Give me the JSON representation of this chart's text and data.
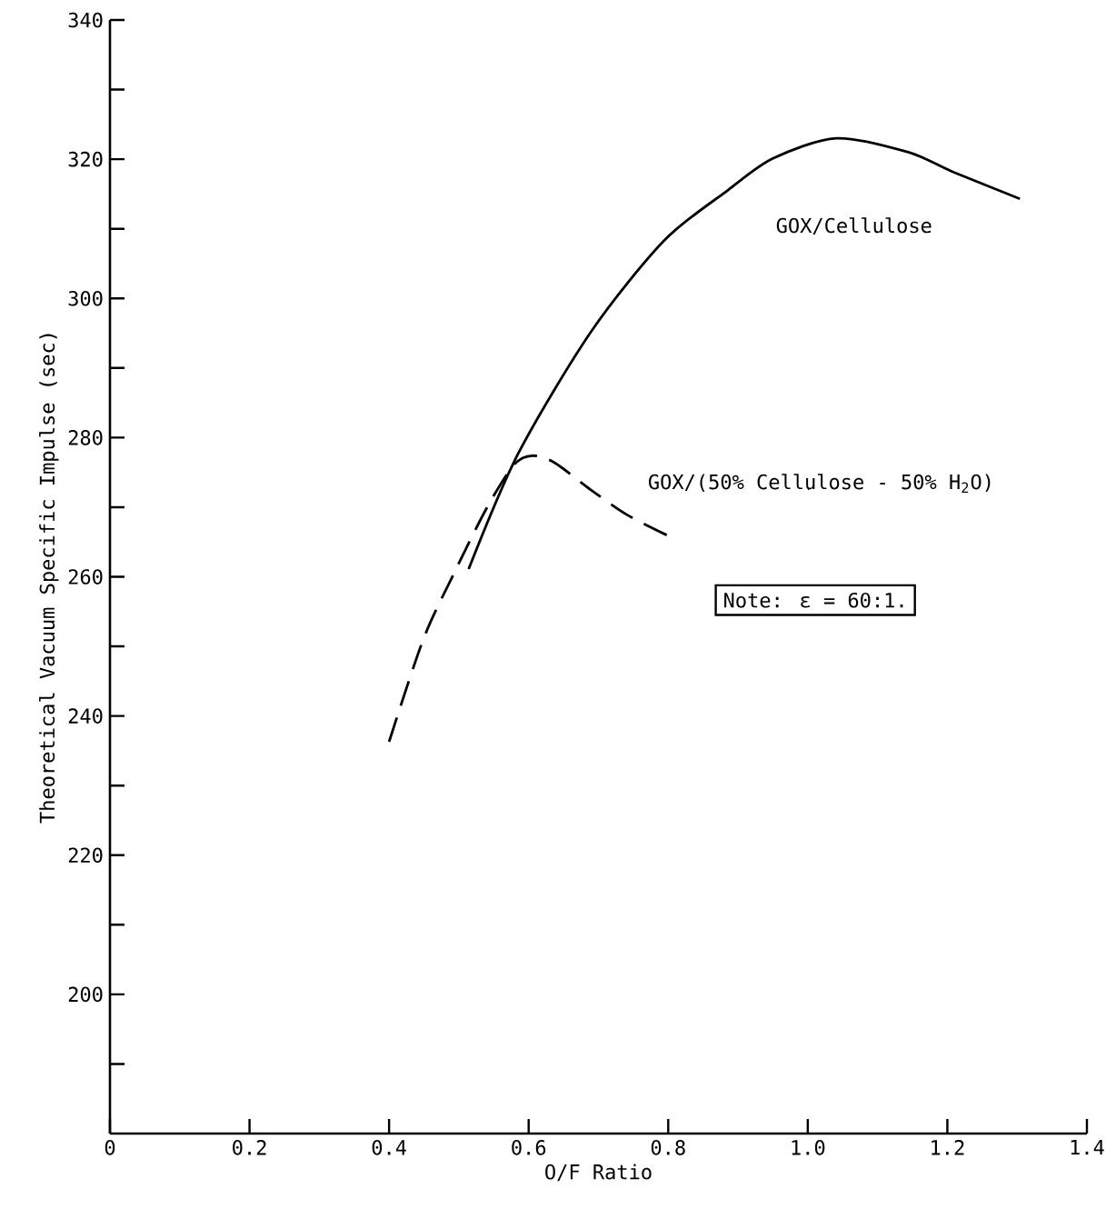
{
  "chart_data": {
    "type": "line",
    "xlabel": "O/F Ratio",
    "ylabel": "Theoretical Vacuum Specific Impulse (sec)",
    "xlim": [
      0,
      1.4
    ],
    "ylim": [
      180,
      340
    ],
    "xticks": [
      0,
      0.2,
      0.4,
      0.6,
      0.8,
      {
        "value": 1.0,
        "label": "1.0"
      },
      1.2,
      1.4
    ],
    "yticks": [
      {
        "value": 190,
        "label": null
      },
      200,
      {
        "value": 210,
        "label": null
      },
      220,
      {
        "value": 230,
        "label": null
      },
      240,
      {
        "value": 250,
        "label": null
      },
      260,
      {
        "value": 270,
        "label": null
      },
      280,
      {
        "value": 290,
        "label": null
      },
      300,
      {
        "value": 310,
        "label": null
      },
      320,
      {
        "value": 330,
        "label": null
      },
      340
    ],
    "grid": false,
    "marker": "none",
    "series": [
      {
        "name": "GOX/Cellulose",
        "color": "#000000",
        "line_style": "solid",
        "x": [
          0.514,
          0.585,
          0.69,
          0.794,
          0.885,
          0.95,
          1.041,
          1.144,
          1.21,
          1.304
        ],
        "values": [
          261.1,
          277.7,
          295.3,
          308.3,
          315.5,
          320.1,
          323.0,
          321.0,
          318.1,
          314.3
        ]
      },
      {
        "name": "GOX/(50% Cellulose - 50% H$_{2}$O)",
        "color": "#000000",
        "line_style": "dashed",
        "x": [
          0.4,
          0.449,
          0.494,
          0.54,
          0.579,
          0.605,
          0.637,
          0.689,
          0.741,
          0.806
        ],
        "values": [
          236.3,
          251.0,
          260.7,
          269.9,
          276.1,
          277.4,
          276.4,
          272.5,
          268.9,
          265.6
        ]
      }
    ],
    "annotations": [
      "Note:  ε = 60:1."
    ]
  }
}
